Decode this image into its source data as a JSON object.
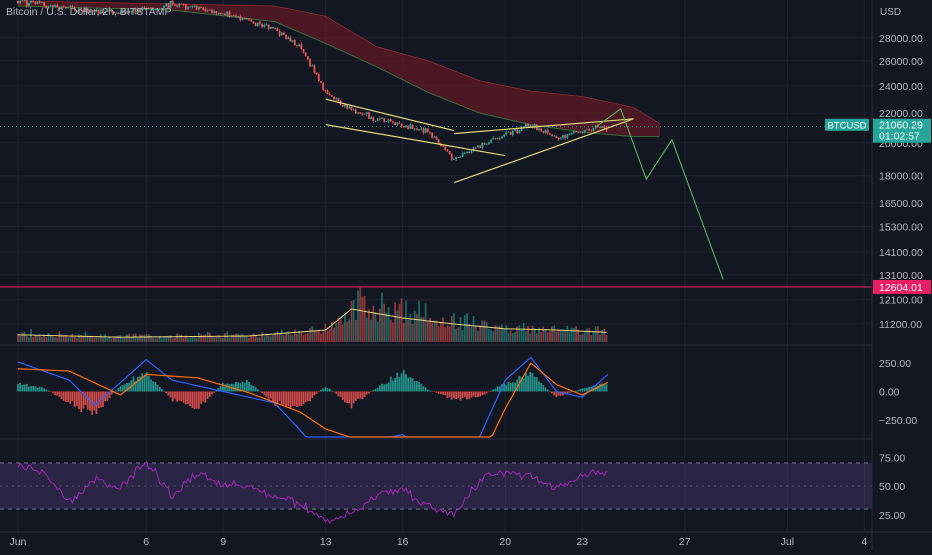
{
  "header": {
    "title": "Bitcoin / U.S. Dollar, 2h, BITSTAMP"
  },
  "colors": {
    "background": "#131722",
    "axis_text": "#b2b5be",
    "grid": "#1e222d",
    "bull": "#26a69a",
    "bear": "#ef5350",
    "pattern_lines": "#e6d97a",
    "projection": "#57b55c",
    "cloud": "#7a1a24",
    "level_line": "#e91e63",
    "macd_line": "#2962ff",
    "signal_line": "#ff6d00",
    "rsi_line": "#9c27b0",
    "rsi_band": "#7e57c2"
  },
  "chart_data": [
    {
      "type": "candlestick",
      "title": "Bitcoin / U.S. Dollar, 2h, BITSTAMP",
      "y_unit": "USD",
      "y_scale": "log",
      "ylim": [
        10500,
        31000
      ],
      "y_ticks": [
        28000,
        26000,
        24000,
        22000,
        20000,
        18000,
        16500,
        15300,
        14100,
        13100,
        12100,
        11200
      ],
      "y_tick_labels": [
        "28000.00",
        "26000.00",
        "24000.00",
        "22000.00",
        "20000.00",
        "18000.00",
        "16500.00",
        "15300.00",
        "14100.00",
        "13100.00",
        "12100.00",
        "11200.00"
      ],
      "x_ticks": [
        "Jun",
        "6",
        "9",
        "13",
        "16",
        "20",
        "23",
        "27",
        "Jul",
        "4"
      ],
      "price_path": {
        "dates": [
          "Jun 1",
          "Jun 3",
          "Jun 5",
          "Jun 7",
          "Jun 9",
          "Jun 11",
          "Jun 12",
          "Jun 13",
          "Jun 14",
          "Jun 15",
          "Jun 16",
          "Jun 17",
          "Jun 18",
          "Jun 19",
          "Jun 20",
          "Jun 21",
          "Jun 22",
          "Jun 23",
          "Jun 24"
        ],
        "values": [
          31500,
          30700,
          30300,
          31200,
          30300,
          28800,
          27200,
          23500,
          22200,
          21600,
          21100,
          20700,
          19000,
          19800,
          20500,
          21200,
          20300,
          20800,
          21060
        ]
      },
      "last_price": {
        "symbol": "BTCUSD",
        "price": "21060.29",
        "countdown": "01:02:57"
      },
      "horizontal_level": {
        "value": 12604.01,
        "label": "12604.01"
      },
      "trendlines": [
        {
          "from": [
            "Jun 13",
            23000
          ],
          "to": [
            "Jun 18",
            20800
          ]
        },
        {
          "from": [
            "Jun 13",
            21200
          ],
          "to": [
            "Jun 20",
            19200
          ]
        },
        {
          "from": [
            "Jun 18",
            17600
          ],
          "to": [
            "Jun 25",
            21600
          ]
        },
        {
          "from": [
            "Jun 18",
            20600
          ],
          "to": [
            "Jun 25",
            21600
          ]
        }
      ],
      "projection": {
        "dates": [
          "Jun 23.5",
          "Jun 24.5",
          "Jun 25.5",
          "Jun 26.5",
          "Jun 28.5"
        ],
        "values": [
          21000,
          22300,
          17800,
          20200,
          12900
        ]
      },
      "ichimoku_cloud": {
        "dates": [
          "Jun 1",
          "Jun 7",
          "Jun 11",
          "Jun 13",
          "Jun 15",
          "Jun 17",
          "Jun 19",
          "Jun 21",
          "Jun 23",
          "Jun 25",
          "Jun 26"
        ],
        "upper": [
          31500,
          31200,
          31000,
          30000,
          27200,
          26000,
          24400,
          23600,
          23200,
          22400,
          21300
        ],
        "lower": [
          31000,
          30600,
          29500,
          27500,
          25500,
          23500,
          22000,
          21200,
          20700,
          20400,
          20400
        ]
      },
      "volume_ma": {
        "dates": [
          "Jun 1",
          "Jun 5",
          "Jun 10",
          "Jun 13",
          "Jun 14",
          "Jun 16",
          "Jun 18",
          "Jun 20",
          "Jun 22",
          "Jun 24"
        ],
        "values": [
          0.12,
          0.08,
          0.1,
          0.2,
          0.55,
          0.4,
          0.3,
          0.22,
          0.2,
          0.16
        ]
      }
    },
    {
      "type": "bar+line",
      "indicator": "MACD",
      "ylim": [
        -400,
        400
      ],
      "y_ticks": [
        250,
        0,
        -250
      ],
      "y_tick_labels": [
        "250.00",
        "0.00",
        "−250.00"
      ],
      "histogram": {
        "dates": [
          "Jun 1",
          "Jun 2",
          "Jun 3",
          "Jun 4",
          "Jun 5",
          "Jun 6",
          "Jun 7",
          "Jun 8",
          "Jun 9",
          "Jun 10",
          "Jun 11",
          "Jun 12",
          "Jun 13",
          "Jun 14",
          "Jun 15",
          "Jun 16",
          "Jun 17",
          "Jun 18",
          "Jun 19",
          "Jun 20",
          "Jun 21",
          "Jun 22",
          "Jun 23",
          "Jun 24"
        ],
        "values": [
          80,
          40,
          -120,
          -220,
          60,
          190,
          -80,
          -180,
          80,
          100,
          -120,
          -170,
          60,
          -150,
          40,
          200,
          20,
          -80,
          -60,
          90,
          180,
          -60,
          30,
          80
        ]
      },
      "macd_line": {
        "dates": [
          "Jun 1",
          "Jun 3",
          "Jun 4",
          "Jun 6",
          "Jun 7",
          "Jun 9",
          "Jun 11",
          "Jun 12",
          "Jun 13",
          "Jun 15",
          "Jun 16",
          "Jun 18",
          "Jun 19",
          "Jun 20",
          "Jun 21",
          "Jun 22",
          "Jun 23",
          "Jun 24"
        ],
        "values": [
          260,
          100,
          -120,
          280,
          100,
          0,
          -100,
          -340,
          -600,
          -420,
          -380,
          -700,
          -400,
          100,
          300,
          0,
          -50,
          150
        ]
      },
      "signal_line": {
        "dates": [
          "Jun 1",
          "Jun 3",
          "Jun 5",
          "Jun 6",
          "Jun 8",
          "Jun 10",
          "Jun 12",
          "Jun 13",
          "Jun 15",
          "Jun 17",
          "Jun 19",
          "Jun 20",
          "Jun 21",
          "Jun 22",
          "Jun 23",
          "Jun 24"
        ],
        "values": [
          200,
          180,
          -30,
          150,
          120,
          -10,
          -180,
          -330,
          -480,
          -560,
          -620,
          -150,
          250,
          60,
          -30,
          80
        ]
      }
    },
    {
      "type": "line",
      "indicator": "RSI",
      "ylim": [
        10,
        90
      ],
      "y_ticks": [
        75,
        50,
        25
      ],
      "y_tick_labels": [
        "75.00",
        "50.00",
        "25.00"
      ],
      "band": [
        30,
        70
      ],
      "dates": [
        "Jun 1",
        "Jun 2",
        "Jun 3",
        "Jun 4",
        "Jun 5",
        "Jun 6",
        "Jun 7",
        "Jun 8",
        "Jun 9",
        "Jun 10",
        "Jun 11",
        "Jun 12",
        "Jun 13",
        "Jun 14",
        "Jun 15",
        "Jun 16",
        "Jun 17",
        "Jun 18",
        "Jun 19",
        "Jun 20",
        "Jun 21",
        "Jun 22",
        "Jun 23",
        "Jun 24"
      ],
      "values": [
        70,
        62,
        35,
        55,
        48,
        72,
        40,
        62,
        52,
        50,
        40,
        35,
        18,
        26,
        42,
        48,
        32,
        25,
        55,
        62,
        58,
        48,
        58,
        62
      ]
    }
  ]
}
